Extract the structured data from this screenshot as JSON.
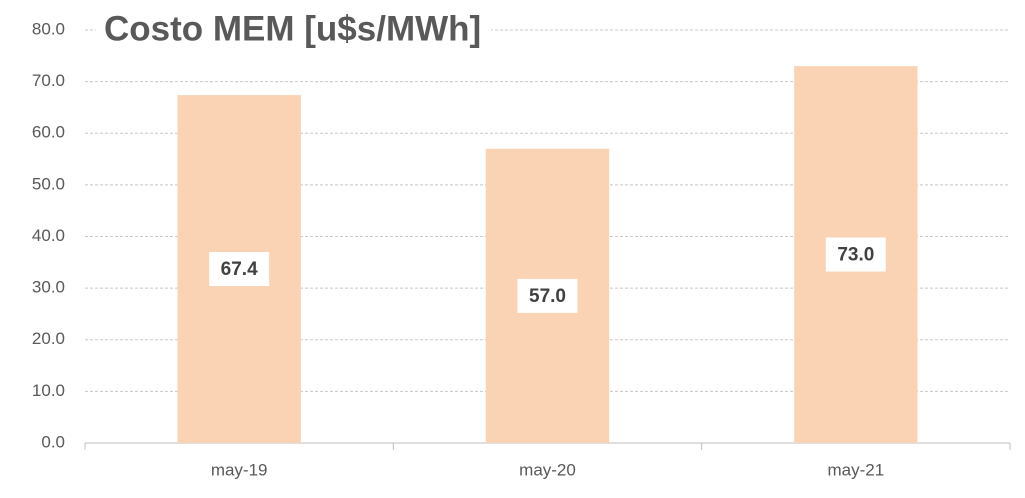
{
  "chart_data": {
    "type": "bar",
    "title": "Costo MEM [u$s/MWh]",
    "categories": [
      "may-19",
      "may-20",
      "may-21"
    ],
    "values": [
      67.4,
      57,
      73
    ],
    "value_labels": [
      "67.4",
      "57.0",
      "73.0"
    ],
    "color": "#fad3b5",
    "ylim": [
      0,
      80
    ],
    "yticks": [
      {
        "value": 0,
        "label": "0.0"
      },
      {
        "value": 10,
        "label": "10.0"
      },
      {
        "value": 20,
        "label": "20.0"
      },
      {
        "value": 30,
        "label": "30.0"
      },
      {
        "value": 40,
        "label": "40.0"
      },
      {
        "value": 50,
        "label": "50.0"
      },
      {
        "value": 60,
        "label": "60.0"
      },
      {
        "value": 70,
        "label": "70.0"
      },
      {
        "value": 80,
        "label": "80.0"
      }
    ],
    "grid": true
  }
}
